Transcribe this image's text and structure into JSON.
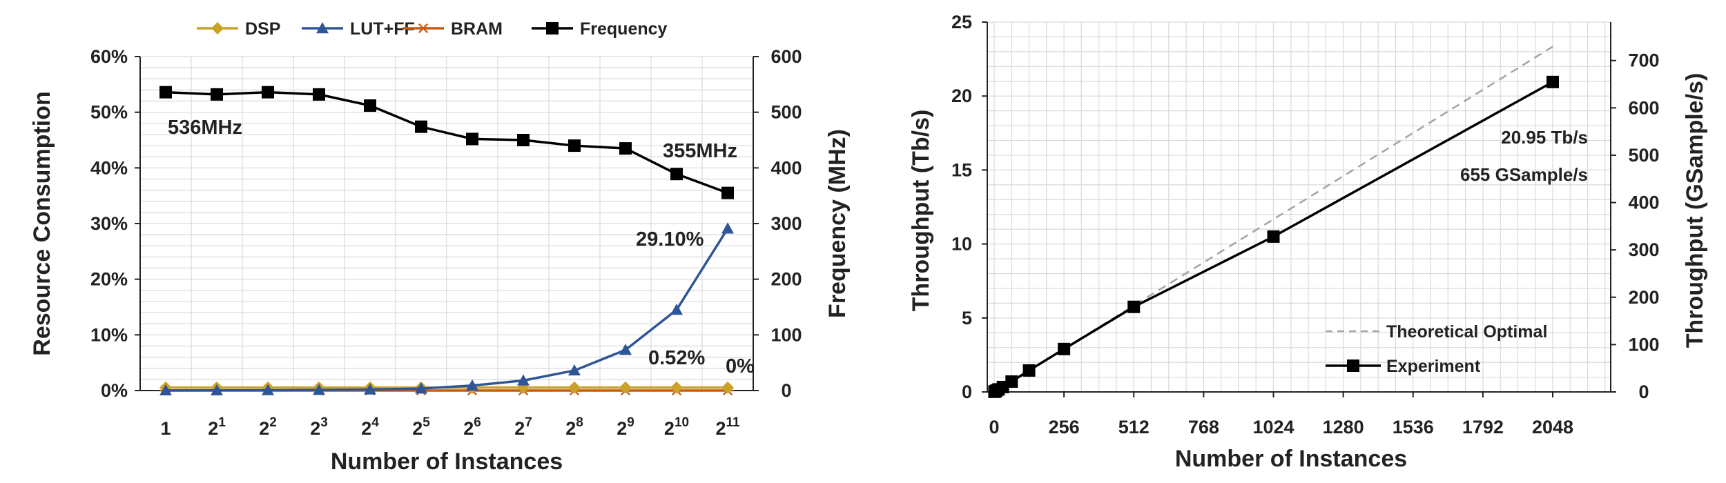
{
  "chart_data": [
    {
      "type": "line",
      "title": "",
      "xlabel": "Number of Instances",
      "ylabel": "Resource Consumption",
      "y2label": "Frequency (MHz)",
      "categories": [
        {
          "base": "1",
          "exp": ""
        },
        {
          "base": "2",
          "exp": "1"
        },
        {
          "base": "2",
          "exp": "2"
        },
        {
          "base": "2",
          "exp": "3"
        },
        {
          "base": "2",
          "exp": "4"
        },
        {
          "base": "2",
          "exp": "5"
        },
        {
          "base": "2",
          "exp": "6"
        },
        {
          "base": "2",
          "exp": "7"
        },
        {
          "base": "2",
          "exp": "8"
        },
        {
          "base": "2",
          "exp": "9"
        },
        {
          "base": "2",
          "exp": "10"
        },
        {
          "base": "2",
          "exp": "11"
        }
      ],
      "ylim": [
        0,
        60
      ],
      "y_ticks": [
        "0%",
        "10%",
        "20%",
        "30%",
        "40%",
        "50%",
        "60%"
      ],
      "y2lim": [
        0,
        600
      ],
      "y2_ticks": [
        "0",
        "100",
        "200",
        "300",
        "400",
        "500",
        "600"
      ],
      "legend_position": "top",
      "series": [
        {
          "name": "DSP",
          "axis": "left",
          "color": "#c9a227",
          "marker": "diamond",
          "values": [
            0.52,
            0.52,
            0.52,
            0.52,
            0.52,
            0.52,
            0.52,
            0.52,
            0.52,
            0.52,
            0.52,
            0.52
          ]
        },
        {
          "name": "LUT+FF",
          "axis": "left",
          "color": "#2f5597",
          "marker": "triangle",
          "values": [
            0.02,
            0.03,
            0.05,
            0.1,
            0.18,
            0.35,
            0.9,
            1.8,
            3.6,
            7.3,
            14.5,
            29.1
          ]
        },
        {
          "name": "BRAM",
          "axis": "left",
          "color": "#c55a11",
          "marker": "asterisk",
          "values": [
            0,
            0,
            0,
            0,
            0,
            0,
            0,
            0,
            0,
            0,
            0,
            0
          ]
        },
        {
          "name": "Frequency",
          "axis": "right",
          "color": "#000000",
          "marker": "square",
          "values": [
            536,
            532,
            536,
            532,
            512,
            474,
            452,
            450,
            440,
            435,
            389,
            355
          ]
        }
      ],
      "annotations": [
        "536MHz",
        "355MHz",
        "29.10%",
        "0.52%",
        "0%"
      ]
    },
    {
      "type": "line",
      "title": "",
      "xlabel": "Number of Instances",
      "ylabel": "Throughput  (Tb/s)",
      "y2label": "Throughput (GSample/s)",
      "xlim": [
        0,
        2048
      ],
      "x_ticks": [
        "0",
        "256",
        "512",
        "768",
        "1024",
        "1280",
        "1536",
        "1792",
        "2048"
      ],
      "ylim": [
        0,
        25
      ],
      "y_ticks": [
        "0",
        "5",
        "10",
        "15",
        "20",
        "25"
      ],
      "y2lim": [
        0,
        781.25
      ],
      "y2_ticks": [
        "0",
        "100",
        "200",
        "300",
        "400",
        "500",
        "600",
        "700"
      ],
      "legend_position": "bottom-right",
      "series": [
        {
          "name": "Theoretical Optimal",
          "style": "dashed",
          "color": "#a6a6a6",
          "x": [
            0,
            2048
          ],
          "y": [
            0,
            23.34
          ]
        },
        {
          "name": "Experiment",
          "style": "solid",
          "color": "#000000",
          "marker": "square",
          "x": [
            1,
            2,
            4,
            8,
            16,
            32,
            64,
            128,
            256,
            512,
            1024,
            2048
          ],
          "y": [
            0.01,
            0.02,
            0.04,
            0.09,
            0.17,
            0.33,
            0.7,
            1.45,
            2.9,
            5.75,
            10.5,
            20.95
          ]
        }
      ],
      "annotations": [
        "20.95 Tb/s",
        "655 GSample/s"
      ]
    }
  ]
}
